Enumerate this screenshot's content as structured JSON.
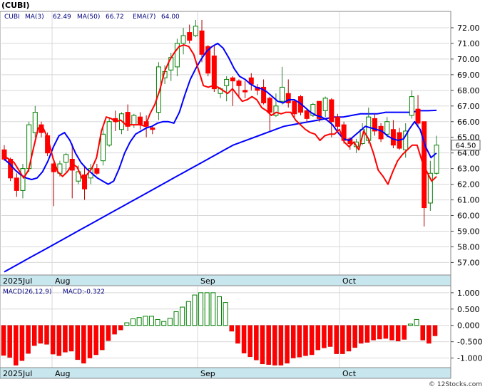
{
  "title": "(CUBI)",
  "legend": {
    "symbol": "CUBI",
    "ma3_label": "MA(3)",
    "ma3_value": "62.49",
    "ma50_label": "MA(50)",
    "ma50_value": "66.72",
    "ema7_label": "EMA(7)",
    "ema7_value": "64.00"
  },
  "last_price_tag": "64.50",
  "macd_legend": {
    "label": "MACD(26,12,9)",
    "value_label": "MACD:-0.322"
  },
  "watermark": "© 12Stocks.com",
  "colors": {
    "up_candle": "#008000",
    "down_candle": "#ff0000",
    "ma3": "#ff0000",
    "ema7": "#0000ff",
    "ma50": "#0000ff",
    "axis_strip": "#c8e6ee",
    "macd_positive_outline": "#008000",
    "macd_negative_fill": "#ff0000"
  },
  "chart_data": [
    {
      "type": "candlestick",
      "x_labels": [
        "2025Jul",
        "Aug",
        "Sep",
        "Oct"
      ],
      "ylim": [
        56.2,
        73.0
      ],
      "y_ticks": [
        "57.00",
        "58.00",
        "59.00",
        "60.00",
        "61.00",
        "62.00",
        "63.00",
        "64.00",
        "65.00",
        "66.00",
        "67.00",
        "68.00",
        "69.00",
        "70.00",
        "71.00",
        "72.00"
      ],
      "candles": [
        [
          64.2,
          63.6,
          64.5,
          63.5
        ],
        [
          63.6,
          62.4,
          63.7,
          62.2
        ],
        [
          62.4,
          61.6,
          62.7,
          61.2
        ],
        [
          61.6,
          63.0,
          63.3,
          61.1
        ],
        [
          63.0,
          65.8,
          66.0,
          62.8
        ],
        [
          65.3,
          66.6,
          67.0,
          65.0
        ],
        [
          65.8,
          65.3,
          66.0,
          65.0
        ],
        [
          65.1,
          64.0,
          65.3,
          63.8
        ],
        [
          63.3,
          62.8,
          63.4,
          60.6
        ],
        [
          62.7,
          63.3,
          63.5,
          62.5
        ],
        [
          63.4,
          63.9,
          64.0,
          62.8
        ],
        [
          63.6,
          62.9,
          64.6,
          61.1
        ],
        [
          62.2,
          62.8,
          63.2,
          62.0
        ],
        [
          62.6,
          61.7,
          63.1,
          61.0
        ],
        [
          62.4,
          63.0,
          63.3,
          62.0
        ],
        [
          63.0,
          62.7,
          63.3,
          62.6
        ],
        [
          63.5,
          65.2,
          65.6,
          63.2
        ],
        [
          64.5,
          66.0,
          66.3,
          64.4
        ],
        [
          66.2,
          66.0,
          66.7,
          65.4
        ],
        [
          65.5,
          66.5,
          66.6,
          65.2
        ],
        [
          66.6,
          65.7,
          67.1,
          65.4
        ],
        [
          65.8,
          66.4,
          66.5,
          65.6
        ],
        [
          66.3,
          65.8,
          66.6,
          65.5
        ],
        [
          66.0,
          65.7,
          66.4,
          65.0
        ],
        [
          65.6,
          65.5,
          65.7,
          65.2
        ],
        [
          66.6,
          69.5,
          69.8,
          66.1
        ],
        [
          68.8,
          69.2,
          69.6,
          68.4
        ],
        [
          69.3,
          70.1,
          70.4,
          68.6
        ],
        [
          69.5,
          71.0,
          71.3,
          68.9
        ],
        [
          71.0,
          71.5,
          72.0,
          70.3
        ],
        [
          71.7,
          71.2,
          72.2,
          71.0
        ],
        [
          71.5,
          72.1,
          72.5,
          71.4
        ],
        [
          71.8,
          70.3,
          72.5,
          69.8
        ],
        [
          70.8,
          69.1,
          70.9,
          68.9
        ],
        [
          70.2,
          68.1,
          70.9,
          67.9
        ],
        [
          67.8,
          68.1,
          68.2,
          67.5
        ],
        [
          68.3,
          68.7,
          68.9,
          67.3
        ],
        [
          68.8,
          68.6,
          68.9,
          67.0
        ],
        [
          68.6,
          68.3,
          68.7,
          67.5
        ],
        [
          68.0,
          67.9,
          68.6,
          67.5
        ],
        [
          68.8,
          68.4,
          69.1,
          68.0
        ],
        [
          68.2,
          68.0,
          68.4,
          67.7
        ],
        [
          68.2,
          67.2,
          68.7,
          67.1
        ],
        [
          67.5,
          66.6,
          67.6,
          65.4
        ],
        [
          66.4,
          67.0,
          67.8,
          66.3
        ],
        [
          67.3,
          68.2,
          69.5,
          67.1
        ],
        [
          67.8,
          67.2,
          68.7,
          66.9
        ],
        [
          67.3,
          66.5,
          67.4,
          66.3
        ],
        [
          67.6,
          66.6,
          67.7,
          66.4
        ],
        [
          66.7,
          66.2,
          66.8,
          66.0
        ],
        [
          66.4,
          67.1,
          67.2,
          66.3
        ],
        [
          67.3,
          66.2,
          67.3,
          66.0
        ],
        [
          66.7,
          67.5,
          67.6,
          66.3
        ],
        [
          67.4,
          66.0,
          67.5,
          65.0
        ],
        [
          66.3,
          65.7,
          66.5,
          65.3
        ],
        [
          65.8,
          64.8,
          66.0,
          64.6
        ],
        [
          64.9,
          64.6,
          65.0,
          64.2
        ],
        [
          64.4,
          64.7,
          64.9,
          64.0
        ],
        [
          64.6,
          65.5,
          65.9,
          64.5
        ],
        [
          64.8,
          66.3,
          66.9,
          64.6
        ],
        [
          66.2,
          65.4,
          66.5,
          65.1
        ],
        [
          65.7,
          64.9,
          65.9,
          64.7
        ],
        [
          65.2,
          66.0,
          66.3,
          65.0
        ],
        [
          65.5,
          64.5,
          66.1,
          64.3
        ],
        [
          65.3,
          64.3,
          65.6,
          64.2
        ],
        [
          64.2,
          65.4,
          65.9,
          63.7
        ],
        [
          66.4,
          67.6,
          68.0,
          66.2
        ],
        [
          66.8,
          65.9,
          67.7,
          65.7
        ],
        [
          66.0,
          60.5,
          66.0,
          59.3
        ],
        [
          60.8,
          62.7,
          63.5,
          60.3
        ],
        [
          62.7,
          64.5,
          65.1,
          62.6
        ]
      ],
      "series": [
        {
          "name": "MA(3)",
          "values": [
            63.8,
            63.6,
            63.4,
            62.9,
            62.4,
            62.9,
            64.3,
            65.6,
            65.6,
            64.9,
            63.7,
            62.8,
            62.5,
            62.8,
            63.3,
            63.1,
            62.4,
            62.6,
            63.0,
            63.7,
            65.4,
            66.3,
            66.2,
            66.0,
            66.1,
            65.8,
            65.8,
            65.8,
            65.8,
            65.7,
            66.5,
            67.1,
            68.0,
            69.2,
            69.9,
            70.4,
            70.8,
            70.9,
            70.8,
            70.3,
            69.3,
            68.3,
            68.2,
            68.3,
            68.2,
            68.0,
            67.8,
            68.1,
            67.7,
            67.3,
            67.4,
            67.6,
            67.4,
            66.9,
            66.7,
            66.4,
            66.6,
            66.5,
            66.6,
            66.6,
            66.1,
            65.8,
            65.5,
            65.3,
            65.2,
            64.8,
            65.1,
            65.2,
            65.2,
            65.5,
            64.7,
            64.4,
            64.7,
            64.2,
            65.4,
            64.9,
            64.0,
            62.9,
            62.5,
            62.0,
            62.8,
            63.5,
            63.9,
            64.2,
            64.5,
            64.5,
            63.5,
            62.8,
            62.2,
            62.49
          ],
          "resampled": true
        },
        {
          "name": "EMA(7)",
          "values": [
            63.6,
            63.3,
            62.9,
            62.6,
            62.4,
            62.3,
            62.4,
            62.8,
            63.5,
            64.4,
            65.1,
            65.3,
            64.8,
            64.0,
            63.4,
            63.0,
            62.7,
            62.4,
            62.2,
            62.0,
            62.2,
            63.0,
            64.0,
            64.7,
            65.2,
            65.4,
            65.6,
            65.7,
            65.9,
            66.0,
            66.0,
            65.9,
            66.6,
            67.7,
            68.7,
            69.4,
            70.0,
            70.5,
            70.8,
            71.0,
            70.7,
            70.1,
            69.4,
            68.9,
            68.7,
            68.4,
            68.2,
            68.1,
            67.9,
            67.6,
            67.3,
            67.2,
            67.4,
            67.4,
            67.2,
            66.9,
            66.6,
            66.4,
            66.3,
            66.1,
            65.8,
            65.3,
            64.9,
            64.8,
            65.1,
            65.4,
            65.7,
            65.6,
            65.5,
            65.4,
            65.1,
            64.9,
            64.8,
            64.9,
            65.5,
            66.0,
            65.5,
            64.4,
            63.7,
            64.0
          ],
          "resampled": true
        },
        {
          "name": "MA(50)",
          "values": [
            56.4,
            56.7,
            57.0,
            57.3,
            57.6,
            57.9,
            58.2,
            58.5,
            58.8,
            59.1,
            59.4,
            59.7,
            60.0,
            60.3,
            60.6,
            60.9,
            61.2,
            61.5,
            61.8,
            62.1,
            62.4,
            62.7,
            63.0,
            63.3,
            63.6,
            63.9,
            64.2,
            64.5,
            64.7,
            64.9,
            65.1,
            65.3,
            65.5,
            65.7,
            65.8,
            65.9,
            66.0,
            66.1,
            66.2,
            66.3,
            66.3,
            66.4,
            66.5,
            66.5,
            66.5,
            66.6,
            66.6,
            66.6,
            66.6,
            66.7,
            66.7,
            66.72
          ],
          "resampled": true,
          "note_hidden": false
        }
      ],
      "last_price": 64.5
    },
    {
      "type": "bar",
      "name": "MACD(26,12,9)",
      "ylim": [
        -1.25,
        1.15
      ],
      "y_ticks": [
        "-1.000",
        "-0.500",
        "0.000",
        "0.500",
        "1.000"
      ],
      "values": [
        -0.92,
        -0.98,
        -1.22,
        -1.08,
        -0.86,
        -0.62,
        -0.55,
        -0.58,
        -0.88,
        -0.93,
        -0.82,
        -0.79,
        -1.05,
        -1.16,
        -1.0,
        -0.9,
        -0.75,
        -0.47,
        -0.27,
        -0.14,
        0.08,
        0.2,
        0.24,
        0.28,
        0.28,
        0.18,
        0.12,
        0.22,
        0.42,
        0.56,
        0.73,
        0.93,
        1.0,
        1.0,
        1.0,
        0.88,
        0.7,
        -0.18,
        -0.55,
        -0.85,
        -0.96,
        -1.06,
        -1.18,
        -1.2,
        -1.22,
        -1.22,
        -1.16,
        -1.0,
        -0.97,
        -0.93,
        -0.9,
        -0.75,
        -0.69,
        -0.65,
        -0.87,
        -0.87,
        -0.79,
        -0.68,
        -0.55,
        -0.52,
        -0.45,
        -0.42,
        -0.4,
        -0.45,
        -0.48,
        -0.43,
        0.04,
        0.18,
        -0.45,
        -0.55,
        -0.322
      ]
    }
  ]
}
